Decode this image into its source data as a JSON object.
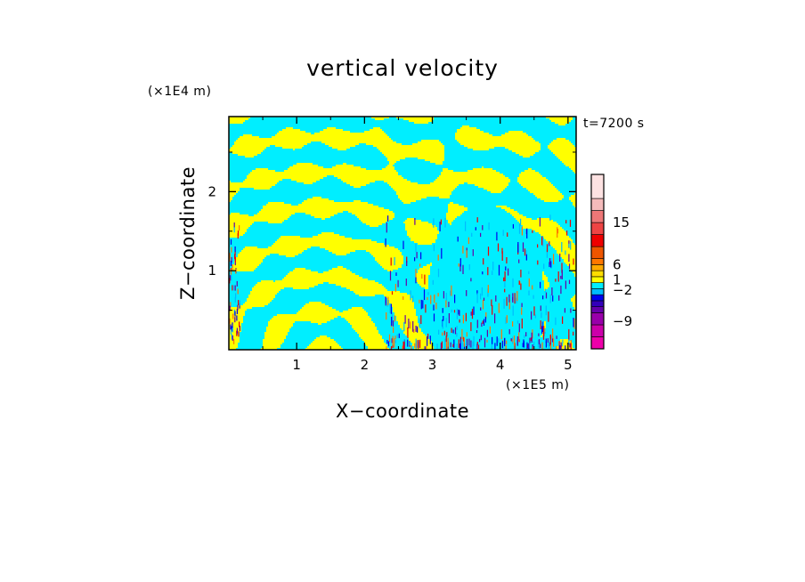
{
  "chart_data": {
    "type": "heatmap",
    "title": "vertical velocity",
    "xlabel": "X−coordinate",
    "ylabel": "Z−coordinate",
    "x_unit": "(×1E5 m)",
    "y_unit": "(×1E4 m)",
    "time_label": "t=7200 s",
    "xlim": [
      0,
      5.12
    ],
    "ylim": [
      0,
      2.95
    ],
    "x_ticks": [
      1,
      2,
      3,
      4,
      5
    ],
    "x_tick_labels": [
      "1",
      "2",
      "3",
      "4",
      "5"
    ],
    "y_ticks": [
      1,
      2
    ],
    "y_tick_labels": [
      "1",
      "2"
    ],
    "background_color": "#00eeff",
    "positive_color": "#ffff00",
    "colorbar": {
      "colors": [
        "#ee00aa",
        "#cc00aa",
        "#9900aa",
        "#6600aa",
        "#3300bb",
        "#0000ee",
        "#00bbff",
        "#00eeff",
        "#ffff00",
        "#ffdd00",
        "#ffaa00",
        "#ff7700",
        "#ee5500",
        "#ee0000",
        "#ee4444",
        "#ee7777",
        "#f4bbbb",
        "#fde2e2"
      ],
      "level_weights": [
        1,
        1,
        1,
        0.5,
        0.5,
        0.5,
        0.5,
        0.5,
        0.5,
        0.5,
        0.5,
        0.5,
        1,
        1,
        1,
        1,
        1,
        2
      ],
      "labels": [
        {
          "text": "15",
          "level": 15
        },
        {
          "text": "6",
          "level": 11
        },
        {
          "text": "1",
          "level": 8.5
        },
        {
          "text": "−2",
          "level": 6.8
        },
        {
          "text": "−9",
          "level": 2.3
        }
      ]
    }
  }
}
